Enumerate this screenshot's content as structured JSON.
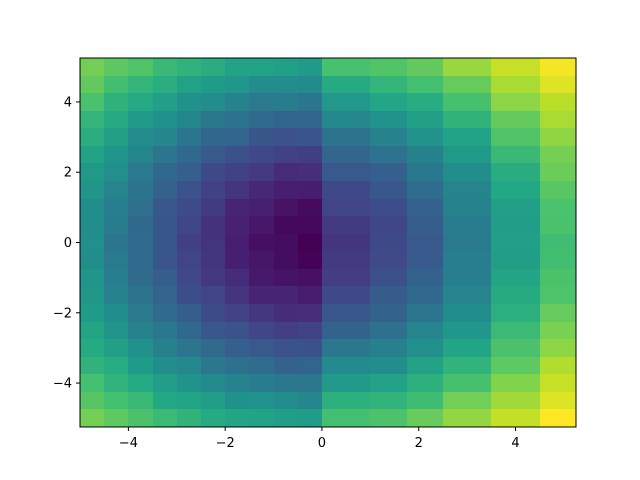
{
  "chart_data": {
    "type": "heatmap",
    "title": "",
    "xlabel": "",
    "ylabel": "",
    "xlim": [
      -5,
      5.25
    ],
    "ylim": [
      -5.25,
      5.25
    ],
    "x_edges": [
      -5,
      -4.5,
      -4,
      -3.5,
      -3,
      -2.5,
      -2,
      -1.5,
      -1,
      -0.5,
      0,
      1,
      1.75,
      2.5,
      3.5,
      4.5,
      5.25
    ],
    "y_edges": [
      -5.25,
      -4.75,
      -4.25,
      -3.75,
      -3.25,
      -2.75,
      -2.25,
      -1.75,
      -1.25,
      -0.75,
      -0.25,
      0.25,
      0.75,
      1.25,
      1.75,
      2.25,
      2.75,
      3.25,
      3.75,
      4.25,
      4.75,
      5.25
    ],
    "xticks": [
      -4,
      -2,
      0,
      2,
      4
    ],
    "xtick_labels": [
      "−4",
      "−2",
      "0",
      "2",
      "4"
    ],
    "yticks": [
      -4,
      -2,
      0,
      2,
      4
    ],
    "ytick_labels": [
      "−4",
      "−2",
      "0",
      "2",
      "4"
    ],
    "colormap": "viridis",
    "value_range": [
      0,
      1
    ],
    "grid": false,
    "legend": "none"
  }
}
